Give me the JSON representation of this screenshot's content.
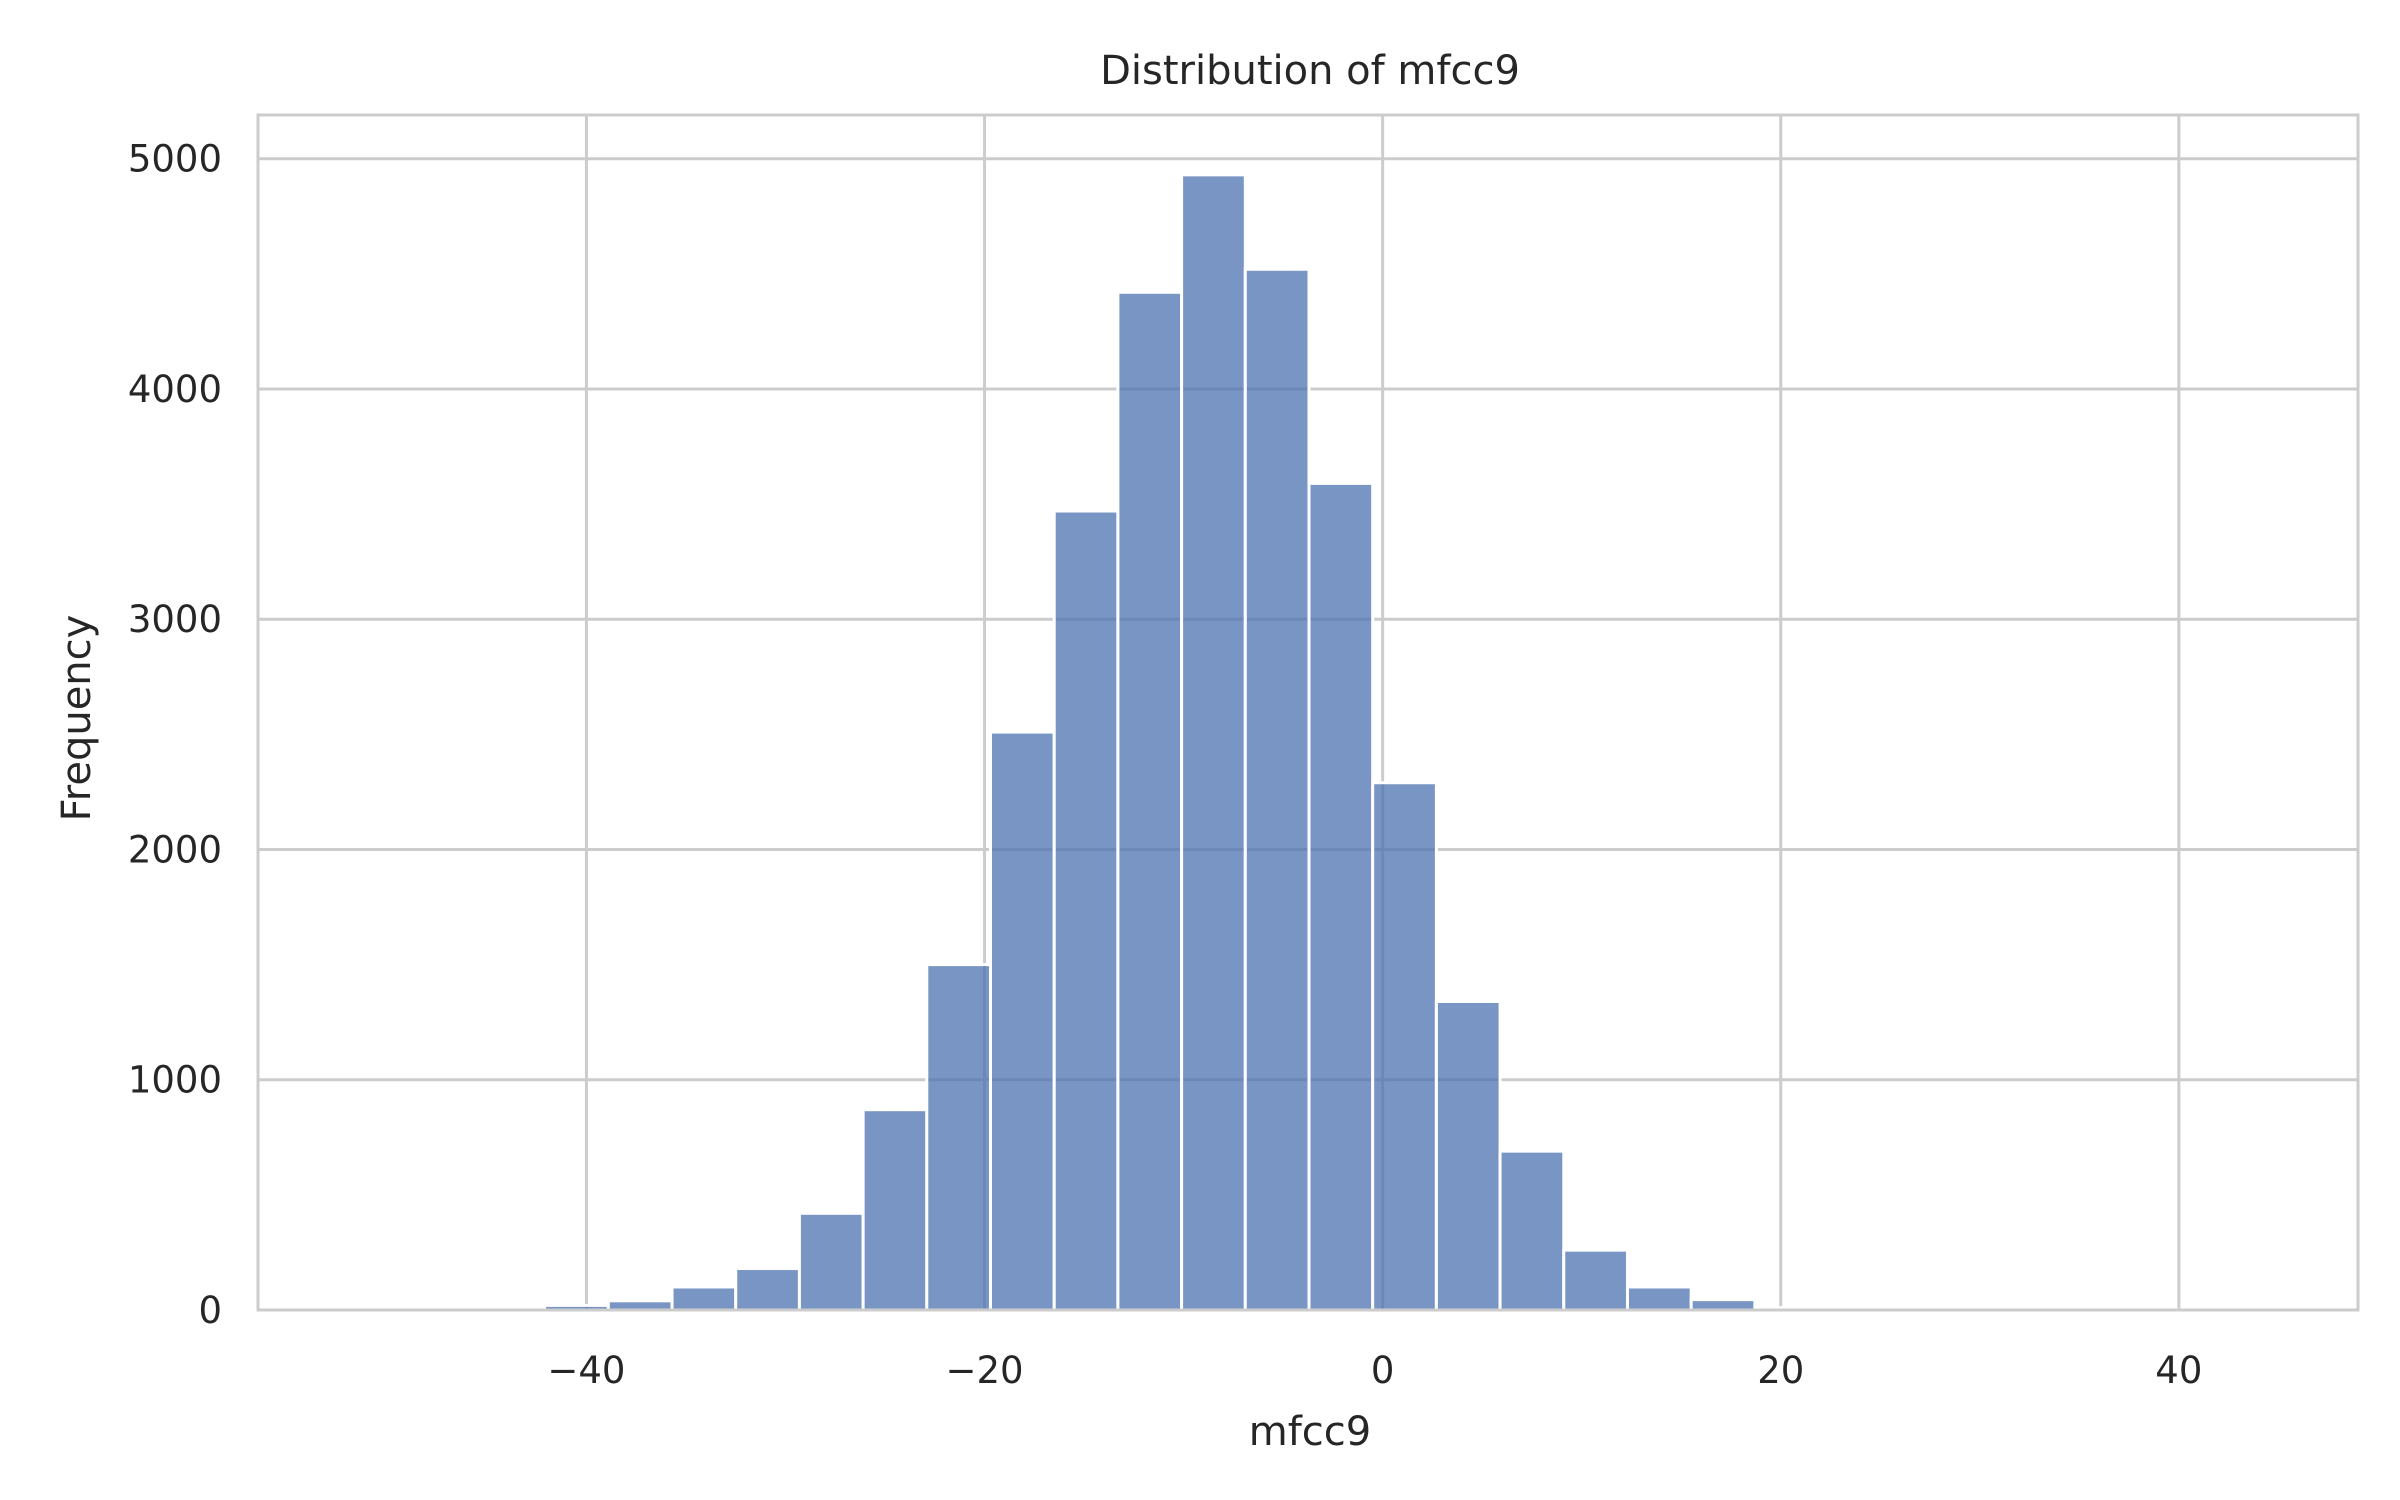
{
  "chart_data": {
    "type": "bar",
    "title": "Distribution of mfcc9",
    "xlabel": "mfcc9",
    "ylabel": "Frequency",
    "xlim": [
      -56.5,
      49
    ],
    "ylim": [
      0,
      5190
    ],
    "xticks": [
      -40,
      -20,
      0,
      20,
      40
    ],
    "xtick_labels": [
      "−40",
      "−20",
      "0",
      "20",
      "40"
    ],
    "yticks": [
      0,
      1000,
      2000,
      3000,
      4000,
      5000
    ],
    "ytick_labels": [
      "0",
      "1000",
      "2000",
      "3000",
      "4000",
      "5000"
    ],
    "grid": true,
    "bar_color": "#4c72b0",
    "bar_opacity": 0.75,
    "bins": [
      {
        "x0": -51.7,
        "x1": -48.5,
        "count": 1
      },
      {
        "x0": -48.5,
        "x1": -45.3,
        "count": 2
      },
      {
        "x0": -45.3,
        "x1": -42.1,
        "count": 5
      },
      {
        "x0": -42.1,
        "x1": -38.9,
        "count": 20
      },
      {
        "x0": -38.9,
        "x1": -35.7,
        "count": 40
      },
      {
        "x0": -35.7,
        "x1": -32.5,
        "count": 100
      },
      {
        "x0": -32.5,
        "x1": -29.3,
        "count": 180
      },
      {
        "x0": -29.3,
        "x1": -26.1,
        "count": 420
      },
      {
        "x0": -26.1,
        "x1": -22.9,
        "count": 870
      },
      {
        "x0": -22.9,
        "x1": -19.7,
        "count": 1500
      },
      {
        "x0": -19.7,
        "x1": -16.5,
        "count": 2510
      },
      {
        "x0": -16.5,
        "x1": -13.3,
        "count": 3470
      },
      {
        "x0": -13.3,
        "x1": -10.1,
        "count": 4420
      },
      {
        "x0": -10.1,
        "x1": -6.9,
        "count": 4930
      },
      {
        "x0": -6.9,
        "x1": -3.7,
        "count": 4520
      },
      {
        "x0": -3.7,
        "x1": -0.5,
        "count": 3590
      },
      {
        "x0": -0.5,
        "x1": 2.7,
        "count": 2290
      },
      {
        "x0": 2.7,
        "x1": 5.9,
        "count": 1340
      },
      {
        "x0": 5.9,
        "x1": 9.1,
        "count": 690
      },
      {
        "x0": 9.1,
        "x1": 12.3,
        "count": 260
      },
      {
        "x0": 12.3,
        "x1": 15.5,
        "count": 100
      },
      {
        "x0": 15.5,
        "x1": 18.7,
        "count": 45
      },
      {
        "x0": 18.7,
        "x1": 21.9,
        "count": 10
      },
      {
        "x0": 21.9,
        "x1": 25.1,
        "count": 4
      },
      {
        "x0": 25.1,
        "x1": 28.3,
        "count": 2
      },
      {
        "x0": 28.3,
        "x1": 31.5,
        "count": 1
      },
      {
        "x0": 31.5,
        "x1": 34.7,
        "count": 1
      },
      {
        "x0": 34.7,
        "x1": 37.9,
        "count": 1
      },
      {
        "x0": 37.9,
        "x1": 41.1,
        "count": 1
      },
      {
        "x0": 41.1,
        "x1": 44.3,
        "count": 1
      },
      {
        "x0": 44.3,
        "x1": 47.5,
        "count": 1
      }
    ]
  }
}
